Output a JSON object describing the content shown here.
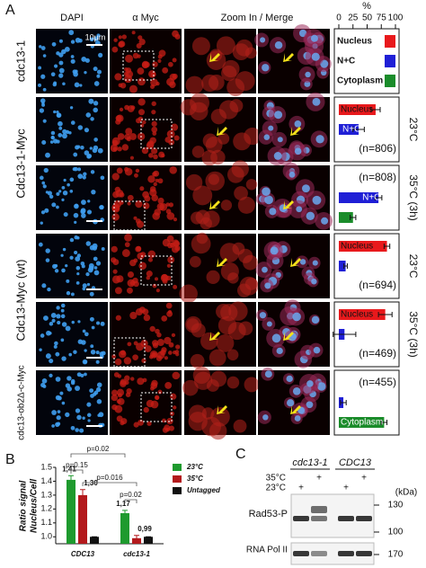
{
  "panel_a": {
    "label": "A",
    "column_headers": [
      "DAPI",
      "α Myc",
      "Zoom In / Merge"
    ],
    "scale_bar": "10μm",
    "axis_title": "%",
    "xlim": [
      0,
      100
    ],
    "xticks": [
      0,
      25,
      50,
      75,
      100
    ],
    "legend": [
      {
        "name": "Nucleus",
        "color": "#e8191c"
      },
      {
        "name": "N+C",
        "color": "#1f1fd6"
      },
      {
        "name": "Cytoplasm",
        "color": "#1a8c2a"
      }
    ],
    "strains": [
      "cdc13-1",
      "Cdc13-1-Myc",
      "Cdc13-Myc (wt)",
      "cdc13-ob2Δ-c-Myc"
    ],
    "rows": [
      {
        "condition": "23°C",
        "n": "(n=806)",
        "values": [
          65,
          35,
          null
        ],
        "errors": [
          8,
          10,
          null
        ],
        "bar_labels": [
          "Nucleus",
          "N+C",
          null
        ]
      },
      {
        "condition": "35°C (3h)",
        "n": "(n=808)",
        "values": [
          null,
          70,
          25
        ],
        "errors": [
          null,
          6,
          5
        ],
        "bar_labels": [
          null,
          "N+C",
          null
        ]
      },
      {
        "condition": "23°C",
        "n": "(n=694)",
        "values": [
          85,
          12,
          null
        ],
        "errors": [
          5,
          3,
          null
        ],
        "bar_labels": [
          "Nucleus",
          null,
          null
        ]
      },
      {
        "condition": "35°C (3h)",
        "n": "(n=469)",
        "values": [
          82,
          10,
          null
        ],
        "errors": [
          12,
          20,
          null
        ],
        "bar_labels": [
          "Nucleus",
          null,
          null
        ]
      },
      {
        "condition": null,
        "n": "(n=455)",
        "values": [
          null,
          8,
          80
        ],
        "errors": [
          null,
          5,
          5
        ],
        "bar_labels": [
          null,
          null,
          "Cytoplasm"
        ]
      }
    ]
  },
  "panel_b": {
    "label": "B",
    "type": "bar",
    "ylabel": [
      "Ratio signal",
      "Nucleus/Cell"
    ],
    "categories": [
      "CDC13",
      "cdc13-1"
    ],
    "series": [
      {
        "name": "23°C",
        "color": "#1e9a2e",
        "values": [
          1.41,
          1.17
        ],
        "errors": [
          0.03,
          0.02
        ],
        "value_labels": [
          "1,41",
          "1,17"
        ]
      },
      {
        "name": "35°C",
        "color": "#b3191c",
        "values": [
          1.3,
          0.99
        ],
        "errors": [
          0.04,
          0.02
        ],
        "value_labels": [
          "1,30",
          "0,99"
        ]
      },
      {
        "name": "Untagged",
        "color": "#111111",
        "values": [
          1.0,
          1.0
        ],
        "errors": [
          0,
          0
        ]
      }
    ],
    "ylim": [
      0.95,
      1.5
    ],
    "yticks": [
      {
        "value": 1,
        "label": "1.0"
      },
      1.1,
      1.2,
      1.3,
      1.4,
      1.5
    ],
    "annotations": [
      "p=0.02",
      "p=0.15",
      "p=0.016",
      "p=0.02"
    ]
  },
  "panel_c": {
    "label": "C",
    "strains": [
      "cdc13-1",
      "CDC13"
    ],
    "conditions": [
      "35°C",
      "23°C"
    ],
    "sign": "+",
    "unit": "(kDa)",
    "markers": [
      130,
      100,
      170
    ],
    "bands": [
      "Rad53-P",
      "RNA Pol II"
    ]
  }
}
